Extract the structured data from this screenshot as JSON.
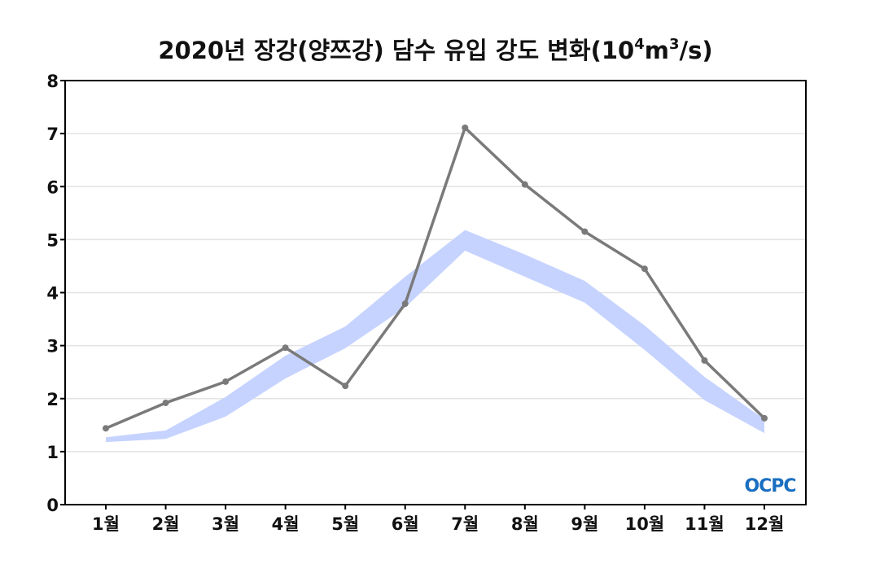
{
  "chart_data": {
    "type": "line",
    "title_main": "2020년 장강(양쯔강) 담수 유입 강도 변화(10",
    "title_sup1": "4",
    "title_mid": "m",
    "title_sup2": "3",
    "title_end": "/s)",
    "categories": [
      "1월",
      "2월",
      "3월",
      "4월",
      "5월",
      "6월",
      "7월",
      "8월",
      "9월",
      "10월",
      "11월",
      "12월"
    ],
    "yticks": [
      "0",
      "1",
      "2",
      "3",
      "4",
      "5",
      "6",
      "7",
      "8"
    ],
    "ylim": [
      0,
      8
    ],
    "grid": true,
    "series": [
      {
        "name": "2020",
        "values": [
          1.44,
          1.92,
          2.32,
          2.96,
          2.24,
          3.79,
          7.11,
          6.04,
          5.15,
          4.45,
          2.72,
          1.63
        ],
        "color": "#7a7a7a"
      }
    ],
    "band": {
      "upper": [
        1.27,
        1.4,
        2.03,
        2.81,
        3.36,
        4.3,
        5.18,
        4.72,
        4.22,
        3.38,
        2.41,
        1.61
      ],
      "lower": [
        1.18,
        1.24,
        1.66,
        2.38,
        2.95,
        3.72,
        4.79,
        4.3,
        3.81,
        2.92,
        1.97,
        1.35
      ],
      "color": "#c6d3ff"
    },
    "logo": "OCPC"
  }
}
